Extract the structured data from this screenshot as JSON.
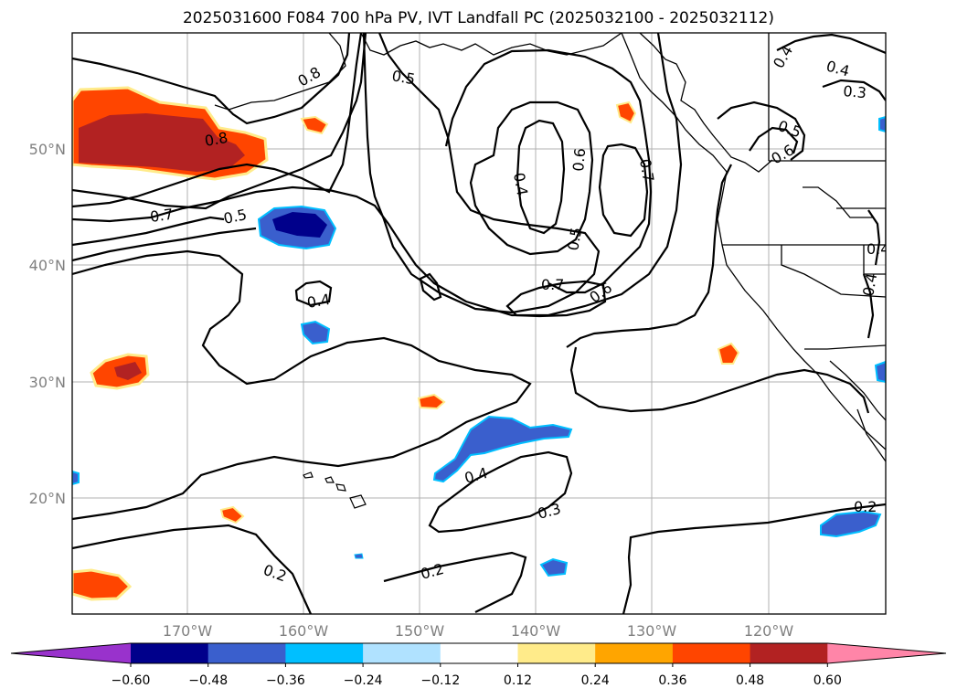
{
  "title": "2025031600 F084 700 hPa PV, IVT Landfall PC (2025032100 - 2025032112)",
  "lat_labels": [
    "50°N",
    "40°N",
    "30°N",
    "20°N"
  ],
  "lon_labels": [
    "170°W",
    "160°W",
    "150°W",
    "140°W",
    "130°W",
    "120°W"
  ],
  "contour_labels": [
    "0.8",
    "0.7",
    "0.5",
    "0.5",
    "0.8",
    "0.4",
    "0.6",
    "0.5",
    "0.7",
    "0.7",
    "0.6",
    "0.4",
    "0.4",
    "0.3",
    "0.2",
    "0.2",
    "0.2",
    "0.4",
    "0.5",
    "0.6",
    "0.3",
    "0.4",
    "0.4",
    "0.4"
  ],
  "colorbar": {
    "tick_labels": [
      "−0.60",
      "−0.48",
      "−0.36",
      "−0.24",
      "−0.12",
      "0.12",
      "0.24",
      "0.36",
      "0.48",
      "0.60"
    ],
    "colors": [
      "#9932cc",
      "#00008b",
      "#3a5fcd",
      "#00bfff",
      "#b0e2ff",
      "#ffffff",
      "#ffeb8a",
      "#ffa500",
      "#ff4500",
      "#b22222",
      "#ff85a8"
    ]
  }
}
